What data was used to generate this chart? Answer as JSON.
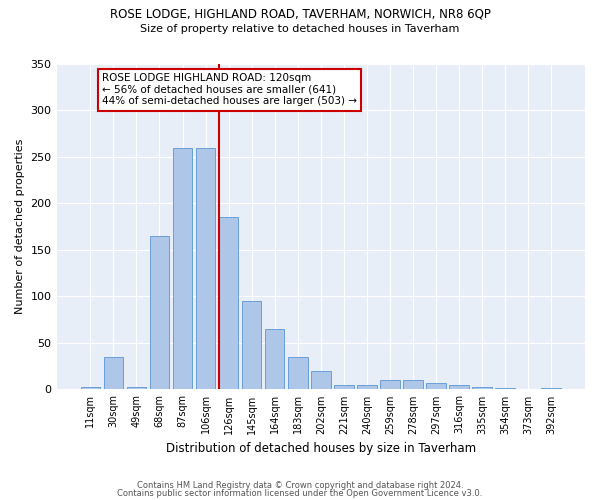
{
  "title": "ROSE LODGE, HIGHLAND ROAD, TAVERHAM, NORWICH, NR8 6QP",
  "subtitle": "Size of property relative to detached houses in Taverham",
  "xlabel": "Distribution of detached houses by size in Taverham",
  "ylabel": "Number of detached properties",
  "categories": [
    "11sqm",
    "30sqm",
    "49sqm",
    "68sqm",
    "87sqm",
    "106sqm",
    "126sqm",
    "145sqm",
    "164sqm",
    "183sqm",
    "202sqm",
    "221sqm",
    "240sqm",
    "259sqm",
    "278sqm",
    "297sqm",
    "316sqm",
    "335sqm",
    "354sqm",
    "373sqm",
    "392sqm"
  ],
  "values": [
    3,
    35,
    3,
    165,
    260,
    260,
    185,
    95,
    65,
    35,
    20,
    5,
    5,
    10,
    10,
    7,
    5,
    3,
    2,
    0,
    2
  ],
  "bar_color": "#aec6e8",
  "bar_edge_color": "#6a9fd8",
  "marker_line_color": "#cc0000",
  "annotation_line1": "ROSE LODGE HIGHLAND ROAD: 120sqm",
  "annotation_line2": "← 56% of detached houses are smaller (641)",
  "annotation_line3": "44% of semi-detached houses are larger (503) →",
  "annotation_box_color": "#ffffff",
  "annotation_box_edge": "#cc0000",
  "ylim": [
    0,
    350
  ],
  "yticks": [
    0,
    50,
    100,
    150,
    200,
    250,
    300,
    350
  ],
  "footer1": "Contains HM Land Registry data © Crown copyright and database right 2024.",
  "footer2": "Contains public sector information licensed under the Open Government Licence v3.0.",
  "plot_bg_color": "#e8eef8",
  "fig_bg_color": "#ffffff"
}
